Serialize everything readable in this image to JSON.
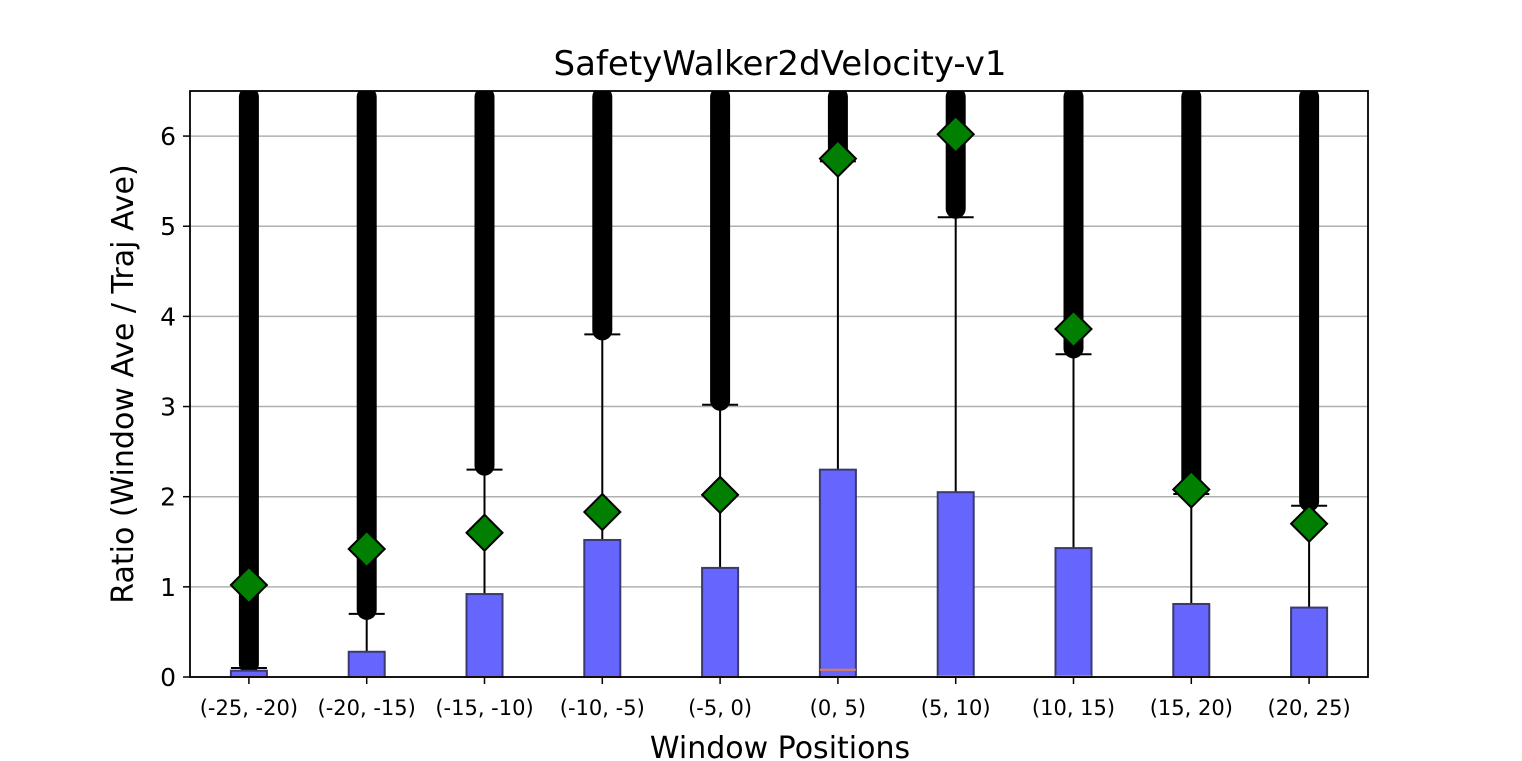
{
  "chart_data": {
    "type": "box",
    "title": "SafetyWalker2dVelocity-v1",
    "xlabel": "Window Positions",
    "ylabel": "Ratio (Window Ave / Traj Ave)",
    "ylim": [
      0,
      6.5
    ],
    "yticks": [
      0,
      1,
      2,
      3,
      4,
      5,
      6
    ],
    "grid": "y",
    "colors": {
      "box_fill": "#6666ff",
      "box_edge": "#3a3a6e",
      "median": "#e8803a",
      "mean_marker": "#007f00",
      "outlier": "#000000",
      "grid": "#b0b0b0"
    },
    "categories": [
      "(-25, -20)",
      "(-20, -15)",
      "(-15, -10)",
      "(-10, -5)",
      "(-5, 0)",
      "(0, 5)",
      "(5, 10)",
      "(10, 15)",
      "(15, 20)",
      "(20, 25)"
    ],
    "boxes": [
      {
        "q1": 0,
        "median": 0,
        "q3": 0.07,
        "whisker_low": 0,
        "whisker_high": 0.1,
        "outliers_from": 0.1,
        "mean": 1.02
      },
      {
        "q1": 0,
        "median": 0,
        "q3": 0.28,
        "whisker_low": 0,
        "whisker_high": 0.7,
        "outliers_from": 0.7,
        "mean": 1.42
      },
      {
        "q1": 0,
        "median": 0,
        "q3": 0.92,
        "whisker_low": 0,
        "whisker_high": 2.3,
        "outliers_from": 2.3,
        "mean": 1.6
      },
      {
        "q1": 0,
        "median": 0,
        "q3": 1.52,
        "whisker_low": 0,
        "whisker_high": 3.8,
        "outliers_from": 3.8,
        "mean": 1.83
      },
      {
        "q1": 0,
        "median": 0,
        "q3": 1.21,
        "whisker_low": 0,
        "whisker_high": 3.02,
        "outliers_from": 3.02,
        "mean": 2.02
      },
      {
        "q1": 0,
        "median": 0.08,
        "q3": 2.3,
        "whisker_low": 0,
        "whisker_high": 5.72,
        "outliers_from": 5.75,
        "mean": 5.75
      },
      {
        "q1": 0,
        "median": 0.01,
        "q3": 2.05,
        "whisker_low": 0,
        "whisker_high": 5.1,
        "outliers_from": 5.15,
        "mean": 6.02
      },
      {
        "q1": 0,
        "median": 0.01,
        "q3": 1.43,
        "whisker_low": 0,
        "whisker_high": 3.58,
        "outliers_from": 3.6,
        "mean": 3.86
      },
      {
        "q1": 0,
        "median": 0,
        "q3": 0.81,
        "whisker_low": 0,
        "whisker_high": 2.03,
        "outliers_from": 2.05,
        "mean": 2.08
      },
      {
        "q1": 0,
        "median": 0,
        "q3": 0.77,
        "whisker_low": 0,
        "whisker_high": 1.9,
        "outliers_from": 1.9,
        "mean": 1.7
      }
    ]
  }
}
